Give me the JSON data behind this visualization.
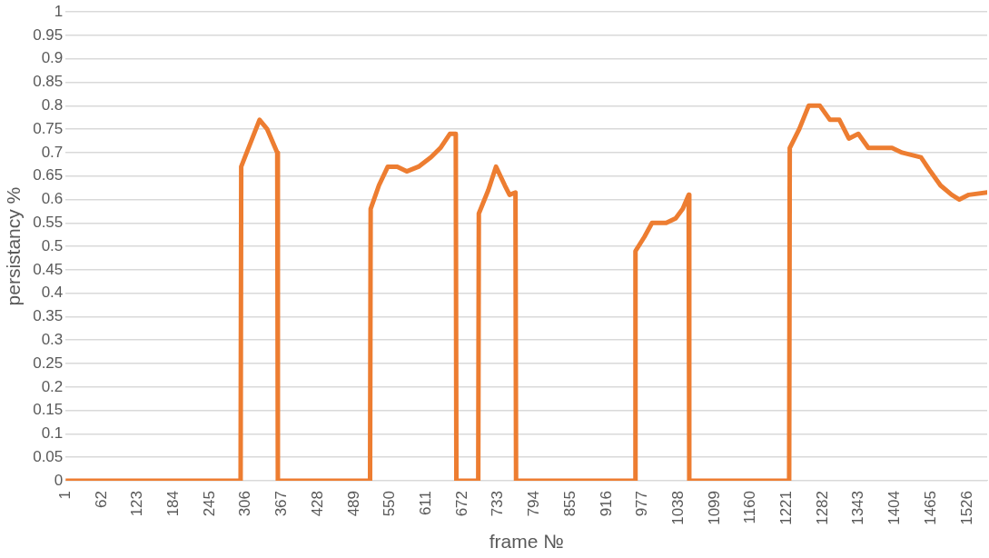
{
  "chart_data": {
    "type": "line",
    "xlabel": "frame №",
    "ylabel": "persistancy %",
    "x": [
      1,
      297,
      298,
      329,
      342,
      359,
      360,
      516,
      517,
      531,
      546,
      562,
      578,
      598,
      619,
      635,
      651,
      661,
      662,
      699,
      700,
      716,
      729,
      744,
      752,
      762,
      763,
      964,
      965,
      980,
      993,
      1017,
      1033,
      1045,
      1055,
      1056,
      1225,
      1226,
      1242,
      1258,
      1277,
      1294,
      1310,
      1326,
      1342,
      1359,
      1399,
      1416,
      1448,
      1464,
      1481,
      1500,
      1513,
      1529,
      1560
    ],
    "series": [
      {
        "color": "#ed7d31",
        "values": [
          0,
          0,
          0.67,
          0.77,
          0.75,
          0.7,
          0,
          0,
          0.58,
          0.63,
          0.67,
          0.67,
          0.66,
          0.67,
          0.69,
          0.71,
          0.74,
          0.74,
          0,
          0,
          0.57,
          0.62,
          0.67,
          0.63,
          0.61,
          0.615,
          0,
          0,
          0.49,
          0.52,
          0.55,
          0.55,
          0.56,
          0.58,
          0.61,
          0,
          0,
          0.71,
          0.75,
          0.8,
          0.8,
          0.77,
          0.77,
          0.73,
          0.74,
          0.71,
          0.71,
          0.7,
          0.69,
          0.66,
          0.63,
          0.61,
          0.6,
          0.61,
          0.615
        ]
      }
    ],
    "xlim": [
      1,
      1560
    ],
    "xticks": [
      1,
      62,
      123,
      184,
      245,
      306,
      367,
      428,
      489,
      550,
      611,
      672,
      733,
      794,
      855,
      916,
      977,
      1038,
      1099,
      1160,
      1221,
      1282,
      1343,
      1404,
      1465,
      1526
    ],
    "ylim": [
      0,
      1
    ],
    "yticks": [
      0,
      0.05,
      0.1,
      0.15,
      0.2,
      0.25,
      0.3,
      0.35,
      0.4,
      0.45,
      0.5,
      0.55,
      0.6,
      0.65,
      0.7,
      0.75,
      0.8,
      0.85,
      0.9,
      0.95,
      1
    ],
    "grid": "y",
    "legend": false,
    "marker": "none",
    "line_style": "solid"
  }
}
